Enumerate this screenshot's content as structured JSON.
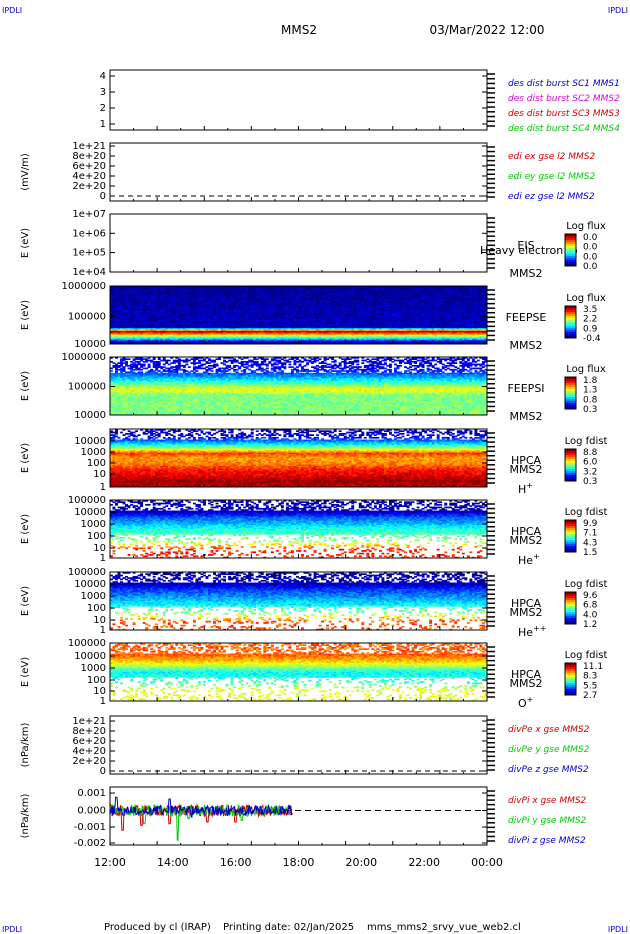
{
  "header": {
    "corner_tl": "IPDLI",
    "corner_tr": "IPDLI",
    "corner_bl": "IPDLI",
    "corner_br": "IPDLI",
    "spacecraft": "MMS2",
    "datetime": "03/Mar/2022 12:00"
  },
  "footer": {
    "produced_by": "Produced by cl (IRAP)",
    "printing_date": "Printing date: 02/Jan/2025",
    "script_name": "mms_mms2_srvy_vue_web2.cl"
  },
  "time_axis": [
    "12:00",
    "14:00",
    "16:00",
    "18:00",
    "20:00",
    "22:00",
    "00:00"
  ],
  "colors": {
    "blue": "#0000cc",
    "magenta": "#dd00dd",
    "red": "#cc0000",
    "green": "#00cc00"
  },
  "chart_data": [
    {
      "type": "line",
      "ylabel": "",
      "yticks": [
        "1",
        "2",
        "3",
        "4"
      ],
      "ylim": [
        0.7,
        4.5
      ],
      "legend": [
        {
          "text": "des dist burst SC1 MMS1",
          "color": "#0000cc"
        },
        {
          "text": "des dist burst SC2 MMS2",
          "color": "#dd00dd"
        },
        {
          "text": "des dist burst SC3 MMS3",
          "color": "#cc0000"
        },
        {
          "text": "des dist burst SC4 MMS4",
          "color": "#00cc00"
        }
      ],
      "series": []
    },
    {
      "type": "line",
      "ylabel": "(mV/m)",
      "yticks": [
        "0",
        "2e+20",
        "4e+20",
        "6e+20",
        "8e+20",
        "1e+21"
      ],
      "ylim": [
        -1e+19,
        1.05e+21
      ],
      "zero_line": true,
      "legend": [
        {
          "text": "edi ex gse l2 MMS2",
          "color": "#cc0000"
        },
        {
          "text": "edi ey gse l2 MMS2",
          "color": "#00cc00"
        },
        {
          "text": "edi ez gse l2 MMS2",
          "color": "#0000cc"
        }
      ],
      "series": []
    },
    {
      "type": "heatmap",
      "ylabel": "E (eV)",
      "yticks": [
        "1e+04",
        "1e+05",
        "1e+06",
        "1e+07"
      ],
      "label_top": "EIS",
      "label_bottom": "MMS2",
      "overlay_text": "Heavy electron to",
      "colorbar_title": "Log flux",
      "colorbar_ticks": [
        "0.0",
        "0.0",
        "0.0",
        "0.0"
      ],
      "spectrum": []
    },
    {
      "type": "heatmap",
      "ylabel": "E (eV)",
      "yticks": [
        "10000",
        "100000",
        "1000000"
      ],
      "label_top": "FEEPSE",
      "label_bottom": "MMS2",
      "colorbar_title": "Log flux",
      "colorbar_ticks": [
        "3.5",
        "2.2",
        "0.9",
        "-0.4"
      ],
      "coverage": [
        0.0,
        1.0
      ],
      "spectrum": [
        {
          "e_frac": 0.02,
          "value": 0.0
        },
        {
          "e_frac": 0.22,
          "value": 0.98
        },
        {
          "e_frac": 0.28,
          "value": 0.05
        },
        {
          "e_frac": 0.55,
          "value": 0.05
        },
        {
          "e_frac": 0.75,
          "value": 0.03
        },
        {
          "e_frac": 0.98,
          "value": 0.02
        }
      ]
    },
    {
      "type": "heatmap",
      "ylabel": "E (eV)",
      "yticks": [
        "10000",
        "100000",
        "1000000"
      ],
      "label_top": "FEEPSI",
      "label_bottom": "MMS2",
      "colorbar_title": "Log flux",
      "colorbar_ticks": [
        "1.8",
        "1.3",
        "0.8",
        "0.3"
      ],
      "coverage": [
        0.0,
        1.0
      ],
      "spectrum": [
        {
          "e_frac": 0.35,
          "value": 0.5
        },
        {
          "e_frac": 0.42,
          "value": 0.62
        },
        {
          "e_frac": 0.5,
          "value": 0.52
        },
        {
          "e_frac": 0.58,
          "value": 0.4
        },
        {
          "e_frac": 0.66,
          "value": 0.28
        },
        {
          "e_frac": 0.74,
          "value": 0.18
        },
        {
          "e_frac": 0.82,
          "value": 0.1
        }
      ]
    },
    {
      "type": "heatmap",
      "ylabel": "E (eV)",
      "yticks": [
        "1",
        "10",
        "100",
        "1000",
        "10000"
      ],
      "label_top": "HPCA",
      "label_mid": "MMS2",
      "species": "H",
      "species_sup": "+",
      "colorbar_title": "Log fdist",
      "colorbar_ticks": [
        "8.8",
        "6.0",
        "3.2",
        "0.3"
      ],
      "coverage": [
        0.0,
        1.0
      ],
      "spectrum": [
        {
          "e_frac": 0.02,
          "value": 0.95
        },
        {
          "e_frac": 0.1,
          "value": 0.98
        },
        {
          "e_frac": 0.2,
          "value": 0.9
        },
        {
          "e_frac": 0.3,
          "value": 0.85
        },
        {
          "e_frac": 0.4,
          "value": 0.75
        },
        {
          "e_frac": 0.5,
          "value": 0.72
        },
        {
          "e_frac": 0.58,
          "value": 0.82
        },
        {
          "e_frac": 0.66,
          "value": 0.55
        },
        {
          "e_frac": 0.74,
          "value": 0.35
        },
        {
          "e_frac": 0.82,
          "value": 0.2
        },
        {
          "e_frac": 0.9,
          "value": 0.06
        }
      ]
    },
    {
      "type": "heatmap",
      "ylabel": "E (eV)",
      "yticks": [
        "1",
        "10",
        "100",
        "1000",
        "10000",
        "100000"
      ],
      "label_top": "HPCA",
      "label_mid": "MMS2",
      "species": "He",
      "species_sup": "+",
      "colorbar_title": "Log fdist",
      "colorbar_ticks": [
        "9.9",
        "7.1",
        "4.3",
        "1.5"
      ],
      "coverage": [
        0.0,
        1.0
      ],
      "spectrum": [
        {
          "e_frac": 0.15,
          "value": 0.85
        },
        {
          "e_frac": 0.3,
          "value": 0.5
        },
        {
          "e_frac": 0.4,
          "value": 0.45
        },
        {
          "e_frac": 0.5,
          "value": 0.4
        },
        {
          "e_frac": 0.6,
          "value": 0.3
        },
        {
          "e_frac": 0.7,
          "value": 0.22
        },
        {
          "e_frac": 0.8,
          "value": 0.05
        }
      ]
    },
    {
      "type": "heatmap",
      "ylabel": "E (eV)",
      "yticks": [
        "1",
        "10",
        "100",
        "1000",
        "10000",
        "100000"
      ],
      "label_top": "HPCA",
      "label_mid": "MMS2",
      "species": "He",
      "species_sup": "++",
      "colorbar_title": "Log fdist",
      "colorbar_ticks": [
        "9.6",
        "6.8",
        "4.0",
        "1.2"
      ],
      "coverage": [
        0.0,
        1.0
      ],
      "spectrum": [
        {
          "e_frac": 0.15,
          "value": 0.8
        },
        {
          "e_frac": 0.3,
          "value": 0.5
        },
        {
          "e_frac": 0.4,
          "value": 0.4
        },
        {
          "e_frac": 0.5,
          "value": 0.32
        },
        {
          "e_frac": 0.6,
          "value": 0.25
        },
        {
          "e_frac": 0.7,
          "value": 0.18
        },
        {
          "e_frac": 0.8,
          "value": 0.05
        }
      ]
    },
    {
      "type": "heatmap",
      "ylabel": "E (eV)",
      "yticks": [
        "1",
        "10",
        "100",
        "1000",
        "10000",
        "100000"
      ],
      "label_top": "HPCA",
      "label_mid": "MMS2",
      "species": "O",
      "species_sup": "+",
      "colorbar_title": "Log fdist",
      "colorbar_ticks": [
        "11.1",
        "8.3",
        "5.5",
        "2.7"
      ],
      "coverage": [
        0.0,
        1.0
      ],
      "spectrum": [
        {
          "e_frac": 0.2,
          "value": 0.6
        },
        {
          "e_frac": 0.3,
          "value": 0.45
        },
        {
          "e_frac": 0.4,
          "value": 0.4
        },
        {
          "e_frac": 0.5,
          "value": 0.38
        },
        {
          "e_frac": 0.6,
          "value": 0.55
        },
        {
          "e_frac": 0.7,
          "value": 0.7
        },
        {
          "e_frac": 0.8,
          "value": 0.78
        }
      ]
    },
    {
      "type": "line",
      "ylabel": "(nPa/km)",
      "yticks": [
        "0",
        "2e+20",
        "4e+20",
        "6e+20",
        "8e+20",
        "1e+21"
      ],
      "ylim": [
        -1e+19,
        1.05e+21
      ],
      "zero_line": true,
      "legend": [
        {
          "text": "divPe x gse MMS2",
          "color": "#cc0000"
        },
        {
          "text": "divPe y gse MMS2",
          "color": "#00cc00"
        },
        {
          "text": "divPe z gse MMS2",
          "color": "#0000cc"
        }
      ],
      "series": []
    },
    {
      "type": "line",
      "ylabel": "(nPa/km)",
      "yticks": [
        "-0.002",
        "-0.001",
        "0.000",
        "0.001"
      ],
      "ytick_values": [
        -0.002,
        -0.001,
        0.0,
        0.001
      ],
      "ylim": [
        -0.0023,
        0.0013
      ],
      "zero_line": true,
      "legend": [
        {
          "text": "divPi x gse MMS2",
          "color": "#cc0000"
        },
        {
          "text": "divPi y gse MMS2",
          "color": "#00cc00"
        },
        {
          "text": "divPi z gse MMS2",
          "color": "#0000cc"
        }
      ],
      "x_range_hours": [
        12.0,
        17.8
      ],
      "series": [
        {
          "color": "#cc0000",
          "amplitude": 0.00035,
          "spikes": [
            [
              12.4,
              -0.0012
            ],
            [
              13.0,
              -0.0009
            ],
            [
              13.9,
              -0.0008
            ],
            [
              15.1,
              -0.0007
            ],
            [
              16.0,
              -0.0007
            ]
          ]
        },
        {
          "color": "#00cc00",
          "amplitude": 0.00035,
          "spikes": [
            [
              13.1,
              -0.0008
            ],
            [
              14.15,
              -0.0018
            ],
            [
              14.5,
              -0.0005
            ],
            [
              16.2,
              -0.0006
            ]
          ]
        },
        {
          "color": "#0000cc",
          "amplitude": 0.0003,
          "spikes": [
            [
              12.2,
              0.0008
            ],
            [
              13.9,
              0.0007
            ],
            [
              14.6,
              -0.0004
            ]
          ]
        }
      ]
    }
  ]
}
